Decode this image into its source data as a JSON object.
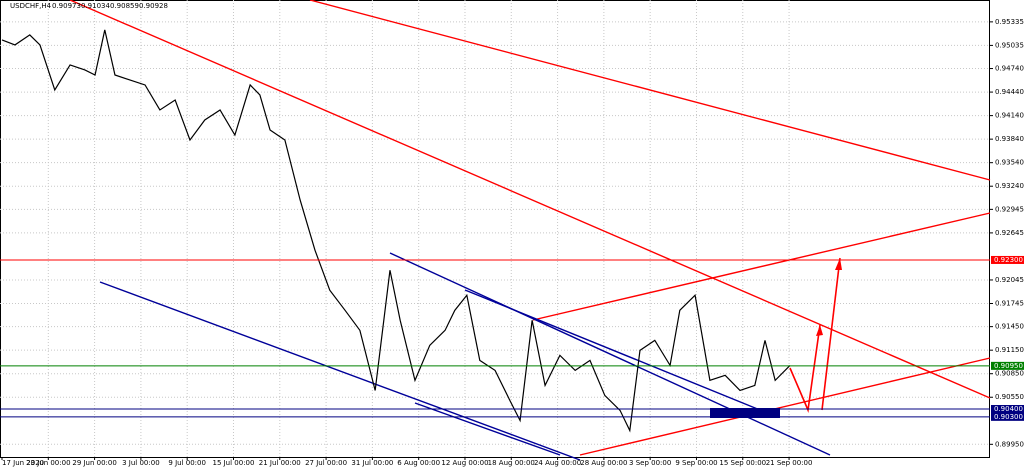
{
  "chart_data": {
    "type": "line",
    "title": "USDCHF,H4",
    "ohlc": [
      0.90973,
      0.91034,
      0.90859,
      0.90928
    ],
    "grid": true,
    "xlim": [
      0,
      21.34
    ],
    "ylim": [
      0.8975,
      0.9555
    ],
    "xticks": [
      {
        "value": 0,
        "label": "17 Jun 2020"
      },
      {
        "value": 1,
        "label": "23 Jun 00:00"
      },
      {
        "value": 2,
        "label": "29 Jun 00:00"
      },
      {
        "value": 3,
        "label": "3 Jul 00:00"
      },
      {
        "value": 4,
        "label": "9 Jul 00:00"
      },
      {
        "value": 5,
        "label": "15 Jul 00:00"
      },
      {
        "value": 6,
        "label": "21 Jul 00:00"
      },
      {
        "value": 7,
        "label": "27 Jul 00:00"
      },
      {
        "value": 8,
        "label": "31 Jul 00:00"
      },
      {
        "value": 9,
        "label": "6 Aug 00:00"
      },
      {
        "value": 10,
        "label": "12 Aug 00:00"
      },
      {
        "value": 11,
        "label": "18 Aug 00:00"
      },
      {
        "value": 12,
        "label": "24 Aug 00:00"
      },
      {
        "value": 13,
        "label": "28 Aug 00:00"
      },
      {
        "value": 14,
        "label": "3 Sep 00:00"
      },
      {
        "value": 15,
        "label": "9 Sep 00:00"
      },
      {
        "value": 16,
        "label": "15 Sep 00:00"
      },
      {
        "value": 17,
        "label": "21 Sep 00:00"
      }
    ],
    "yticks": [
      {
        "value": 0.95335,
        "label": "0.95335"
      },
      {
        "value": 0.95035,
        "label": "0.95035"
      },
      {
        "value": 0.9474,
        "label": "0.94740"
      },
      {
        "value": 0.9444,
        "label": "0.94440"
      },
      {
        "value": 0.9414,
        "label": "0.94140"
      },
      {
        "value": 0.9384,
        "label": "0.93840"
      },
      {
        "value": 0.9354,
        "label": "0.93540"
      },
      {
        "value": 0.9324,
        "label": "0.93240"
      },
      {
        "value": 0.92945,
        "label": "0.92945"
      },
      {
        "value": 0.92645,
        "label": "0.92645"
      },
      {
        "value": 0.92045,
        "label": "0.92045"
      },
      {
        "value": 0.91745,
        "label": "0.91745"
      },
      {
        "value": 0.9145,
        "label": "0.91450"
      },
      {
        "value": 0.9115,
        "label": "0.91150"
      },
      {
        "value": 0.9085,
        "label": "0.90850"
      },
      {
        "value": 0.9055,
        "label": "0.90550"
      },
      {
        "value": 0.8995,
        "label": "0.89950"
      }
    ],
    "levels": [
      {
        "value": 0.923,
        "label": "0.92300",
        "color": "#ff0000"
      },
      {
        "value": 0.9095,
        "label": "0.90950",
        "color": "#008000"
      },
      {
        "value": 0.904,
        "label": "0.90400",
        "color": "#000080"
      },
      {
        "value": 0.903,
        "label": "0.90300",
        "color": "#000080"
      }
    ],
    "series": [
      {
        "color": "#000000",
        "x": [
          0,
          0.28,
          0.6,
          0.82,
          1.14,
          1.47,
          1.79,
          2.01,
          2.22,
          2.44,
          2.76,
          3.09,
          3.41,
          3.74,
          4.06,
          4.38,
          4.71,
          5.03,
          5.36,
          5.57,
          5.79,
          6.11,
          6.44,
          6.76,
          7.08,
          7.41,
          7.73,
          8.06,
          8.38,
          8.6,
          8.92,
          9.24,
          9.57,
          9.78,
          10.04,
          10.32,
          10.65,
          10.97,
          11.19,
          11.45,
          11.73,
          12.05,
          12.38,
          12.7,
          13.02,
          13.35,
          13.56,
          13.78,
          14.1,
          14.43,
          14.64,
          14.97,
          15.29,
          15.62,
          15.94,
          16.26,
          16.48,
          16.7,
          17.02
        ],
        "values": [
          0.95105,
          0.95041,
          0.95169,
          0.95041,
          0.94467,
          0.94786,
          0.94722,
          0.94658,
          0.95233,
          0.94658,
          0.94595,
          0.94531,
          0.94212,
          0.94339,
          0.93829,
          0.94084,
          0.94212,
          0.93892,
          0.94531,
          0.94403,
          0.93956,
          0.93829,
          0.93063,
          0.92424,
          0.91914,
          0.91658,
          0.91403,
          0.90637,
          0.92169,
          0.91531,
          0.90765,
          0.91212,
          0.91403,
          0.91658,
          0.9185,
          0.9102,
          0.90892,
          0.90509,
          0.90254,
          0.91531,
          0.90701,
          0.91084,
          0.90892,
          0.9102,
          0.90573,
          0.90382,
          0.90126,
          0.91148,
          0.91275,
          0.90956,
          0.91658,
          0.9185,
          0.90765,
          0.90829,
          0.90637,
          0.90701,
          0.91275,
          0.90765,
          0.90956
        ]
      }
    ]
  }
}
